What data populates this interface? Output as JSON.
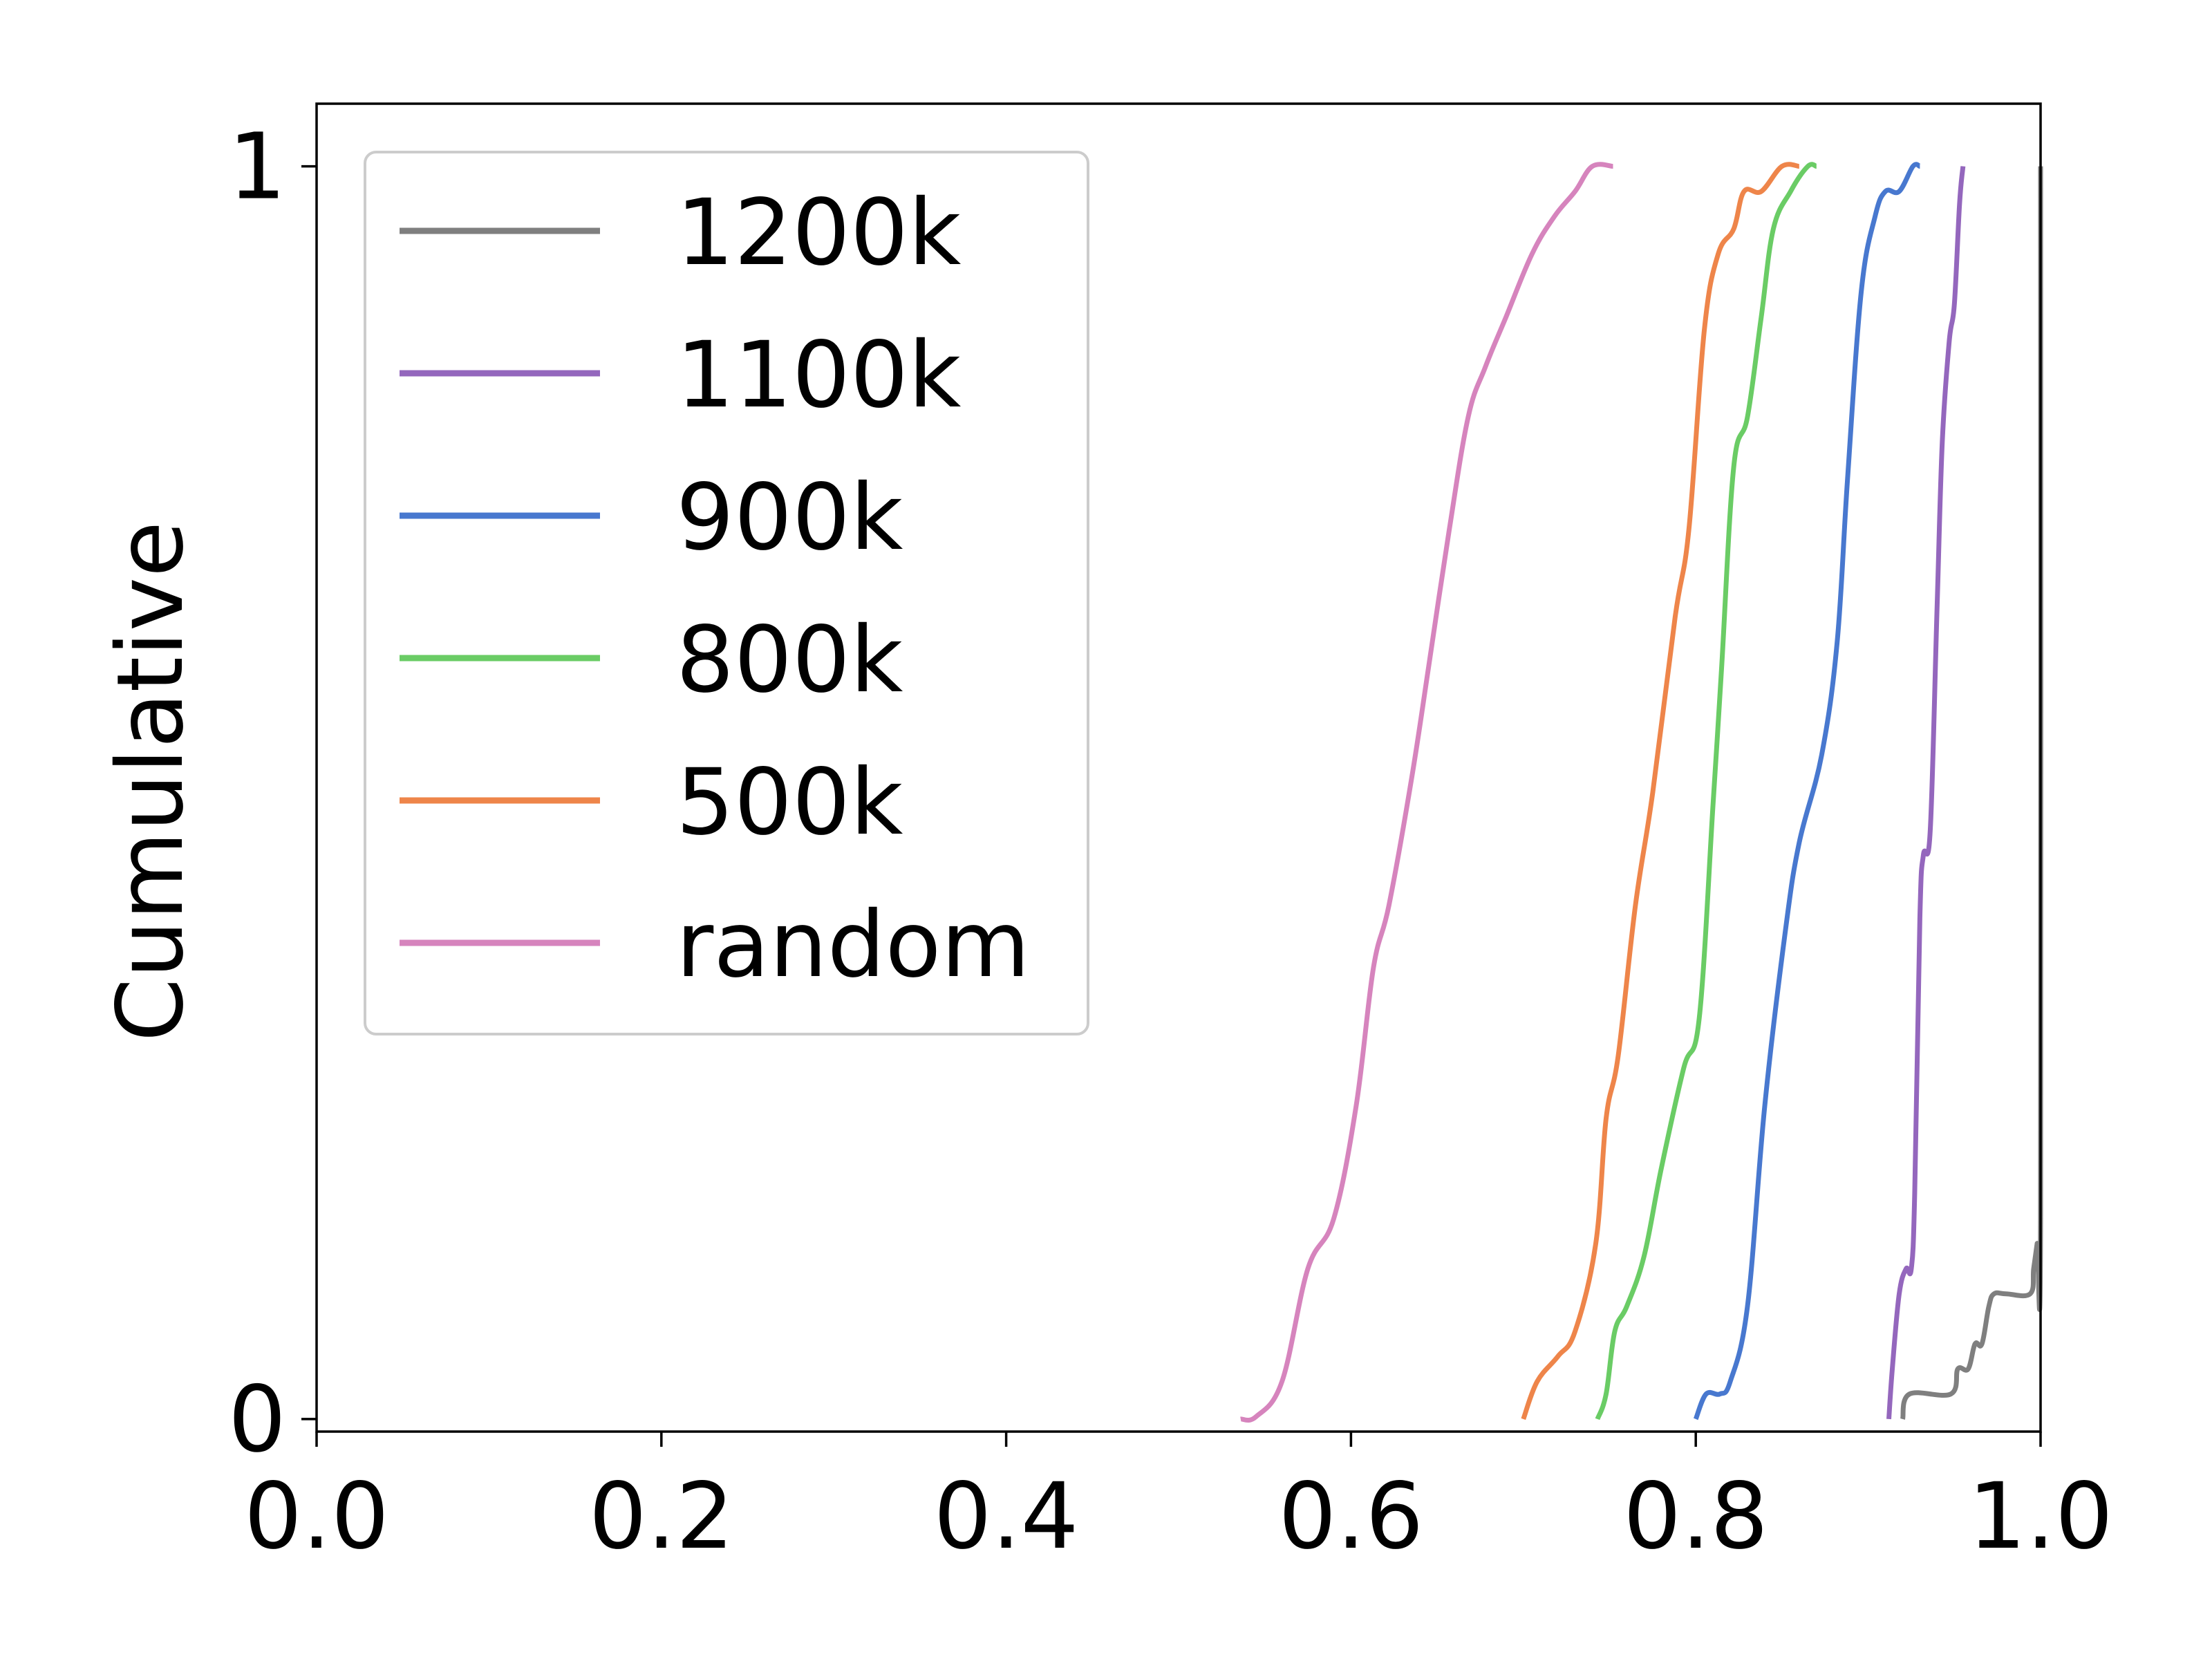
{
  "chart_data": {
    "type": "line",
    "title": "",
    "xlabel": "",
    "ylabel": "Cumulative",
    "xlim": [
      0.0,
      1.0
    ],
    "ylim": [
      -0.01,
      1.05
    ],
    "x_ticks": [
      0.0,
      0.2,
      0.4,
      0.6,
      0.8,
      1.0
    ],
    "x_tick_labels": [
      "0.0",
      "0.2",
      "0.4",
      "0.6",
      "0.8",
      "1.0"
    ],
    "y_ticks": [
      0,
      1
    ],
    "y_tick_labels": [
      "0",
      "1"
    ],
    "grid": false,
    "legend_position": "upper-left",
    "series": [
      {
        "name": "1200k",
        "color": "#7f7f7f",
        "points": [
          [
            0.92,
            0.0
          ],
          [
            0.924,
            0.02
          ],
          [
            0.948,
            0.02
          ],
          [
            0.952,
            0.04
          ],
          [
            0.958,
            0.04
          ],
          [
            0.962,
            0.06
          ],
          [
            0.966,
            0.06
          ],
          [
            0.97,
            0.09
          ],
          [
            0.973,
            0.1
          ],
          [
            0.98,
            0.1
          ],
          [
            0.994,
            0.1
          ],
          [
            0.996,
            0.12
          ],
          [
            0.998,
            0.14
          ],
          [
            1.0,
            0.16
          ],
          [
            1.0,
            1.0
          ]
        ]
      },
      {
        "name": "1100k",
        "color": "#9467bd",
        "points": [
          [
            0.912,
            0.0
          ],
          [
            0.914,
            0.04
          ],
          [
            0.918,
            0.1
          ],
          [
            0.922,
            0.12
          ],
          [
            0.925,
            0.12
          ],
          [
            0.927,
            0.18
          ],
          [
            0.93,
            0.4
          ],
          [
            0.932,
            0.45
          ],
          [
            0.936,
            0.47
          ],
          [
            0.94,
            0.65
          ],
          [
            0.943,
            0.78
          ],
          [
            0.947,
            0.86
          ],
          [
            0.95,
            0.89
          ],
          [
            0.953,
            0.97
          ],
          [
            0.955,
            1.0
          ]
        ]
      },
      {
        "name": "900k",
        "color": "#4878cf",
        "points": [
          [
            0.8,
            0.0
          ],
          [
            0.806,
            0.02
          ],
          [
            0.814,
            0.02
          ],
          [
            0.82,
            0.03
          ],
          [
            0.83,
            0.09
          ],
          [
            0.84,
            0.25
          ],
          [
            0.852,
            0.39
          ],
          [
            0.86,
            0.46
          ],
          [
            0.873,
            0.53
          ],
          [
            0.882,
            0.62
          ],
          [
            0.888,
            0.75
          ],
          [
            0.896,
            0.9
          ],
          [
            0.904,
            0.96
          ],
          [
            0.91,
            0.98
          ],
          [
            0.918,
            0.98
          ],
          [
            0.926,
            1.0
          ],
          [
            0.93,
            1.0
          ]
        ]
      },
      {
        "name": "800k",
        "color": "#6acc65",
        "points": [
          [
            0.743,
            0.0
          ],
          [
            0.748,
            0.02
          ],
          [
            0.753,
            0.07
          ],
          [
            0.76,
            0.09
          ],
          [
            0.77,
            0.13
          ],
          [
            0.78,
            0.2
          ],
          [
            0.793,
            0.28
          ],
          [
            0.802,
            0.32
          ],
          [
            0.81,
            0.49
          ],
          [
            0.815,
            0.6
          ],
          [
            0.822,
            0.76
          ],
          [
            0.83,
            0.8
          ],
          [
            0.838,
            0.88
          ],
          [
            0.845,
            0.95
          ],
          [
            0.855,
            0.98
          ],
          [
            0.865,
            1.0
          ],
          [
            0.87,
            1.0
          ]
        ]
      },
      {
        "name": "500k",
        "color": "#ee854a",
        "points": [
          [
            0.7,
            0.0
          ],
          [
            0.708,
            0.03
          ],
          [
            0.72,
            0.05
          ],
          [
            0.73,
            0.07
          ],
          [
            0.742,
            0.14
          ],
          [
            0.748,
            0.24
          ],
          [
            0.755,
            0.29
          ],
          [
            0.765,
            0.41
          ],
          [
            0.775,
            0.5
          ],
          [
            0.788,
            0.64
          ],
          [
            0.796,
            0.71
          ],
          [
            0.805,
            0.87
          ],
          [
            0.813,
            0.93
          ],
          [
            0.822,
            0.95
          ],
          [
            0.828,
            0.98
          ],
          [
            0.838,
            0.98
          ],
          [
            0.85,
            1.0
          ],
          [
            0.86,
            1.0
          ]
        ]
      },
      {
        "name": "random",
        "color": "#d684bd",
        "points": [
          [
            0.536,
            0.0
          ],
          [
            0.545,
            0.002
          ],
          [
            0.56,
            0.03
          ],
          [
            0.575,
            0.12
          ],
          [
            0.59,
            0.16
          ],
          [
            0.603,
            0.25
          ],
          [
            0.613,
            0.36
          ],
          [
            0.622,
            0.41
          ],
          [
            0.635,
            0.51
          ],
          [
            0.645,
            0.6
          ],
          [
            0.657,
            0.71
          ],
          [
            0.668,
            0.8
          ],
          [
            0.678,
            0.84
          ],
          [
            0.69,
            0.88
          ],
          [
            0.705,
            0.93
          ],
          [
            0.718,
            0.96
          ],
          [
            0.73,
            0.98
          ],
          [
            0.74,
            1.0
          ],
          [
            0.752,
            1.0
          ]
        ]
      }
    ]
  }
}
